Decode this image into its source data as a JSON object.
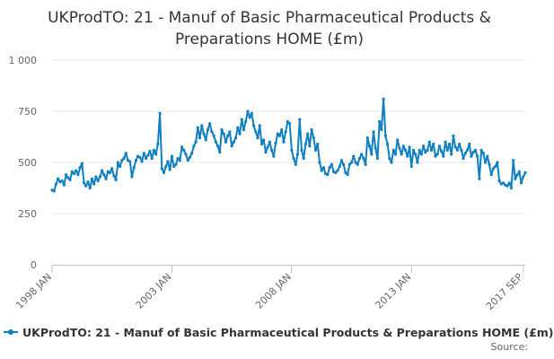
{
  "chart_data": {
    "type": "line",
    "title_lines": [
      "UKProdTO: 21 - Manuf of Basic Pharmaceutical Products &",
      "Preparations HOME (£m)"
    ],
    "xlabel": "",
    "ylabel": "",
    "x_tick_labels": [
      "1998 JAN",
      "2003 JAN",
      "2008 JAN",
      "2013 JAN",
      "2017 SEP"
    ],
    "x_tick_months": [
      0,
      60,
      120,
      180,
      236
    ],
    "y_tick_labels": [
      "0",
      "250",
      "500",
      "750",
      "1 000"
    ],
    "y_tick_values": [
      0,
      250,
      500,
      750,
      1000
    ],
    "ylim": [
      0,
      1000
    ],
    "x_range": [
      "1998 JAN",
      "2017 SEP"
    ],
    "grid": "horizontal",
    "legend_position": "bottom",
    "series": [
      {
        "name": "UKProdTO: 21 - Manuf of Basic Pharmaceutical Products & Preparations HOME (£m)",
        "color": "#0f7fbf",
        "x_start": "1998 JAN",
        "frequency": "monthly",
        "values": [
          365,
          360,
          395,
          420,
          405,
          410,
          390,
          440,
          425,
          415,
          455,
          445,
          460,
          440,
          475,
          495,
          400,
          385,
          405,
          375,
          420,
          395,
          430,
          410,
          430,
          460,
          440,
          420,
          455,
          450,
          470,
          435,
          415,
          500,
          480,
          510,
          520,
          545,
          510,
          505,
          430,
          475,
          510,
          530,
          525,
          505,
          545,
          520,
          535,
          555,
          520,
          560,
          540,
          590,
          740,
          470,
          450,
          480,
          505,
          465,
          530,
          480,
          490,
          520,
          510,
          575,
          560,
          540,
          510,
          525,
          545,
          580,
          600,
          670,
          620,
          680,
          640,
          610,
          660,
          690,
          650,
          630,
          600,
          580,
          550,
          660,
          640,
          600,
          630,
          650,
          580,
          600,
          620,
          670,
          640,
          710,
          660,
          700,
          750,
          720,
          740,
          680,
          650,
          620,
          680,
          590,
          610,
          550,
          575,
          600,
          560,
          530,
          595,
          640,
          630,
          660,
          600,
          650,
          700,
          690,
          560,
          520,
          490,
          540,
          710,
          560,
          520,
          590,
          640,
          580,
          660,
          620,
          560,
          590,
          500,
          460,
          475,
          445,
          440,
          475,
          490,
          455,
          450,
          460,
          480,
          510,
          490,
          450,
          440,
          490,
          500,
          530,
          500,
          490,
          520,
          540,
          520,
          490,
          620,
          580,
          540,
          650,
          570,
          520,
          700,
          660,
          810,
          630,
          590,
          520,
          500,
          560,
          540,
          610,
          570,
          540,
          580,
          560,
          530,
          575,
          480,
          560,
          540,
          500,
          560,
          540,
          580,
          550,
          560,
          600,
          560,
          590,
          530,
          540,
          580,
          555,
          530,
          600,
          560,
          590,
          540,
          630,
          575,
          560,
          590,
          560,
          520,
          545,
          560,
          590,
          530,
          550,
          560,
          530,
          420,
          560,
          545,
          500,
          530,
          490,
          440,
          470,
          480,
          500,
          410,
          395,
          400,
          390,
          385,
          400,
          375,
          510,
          420,
          440,
          455,
          400,
          430,
          450
        ]
      }
    ]
  },
  "legend": {
    "label": "UKProdTO: 21 - Manuf of Basic Pharmaceutical Products & Preparations HOME (£m)"
  },
  "footer": {
    "source_label": "Source:"
  }
}
